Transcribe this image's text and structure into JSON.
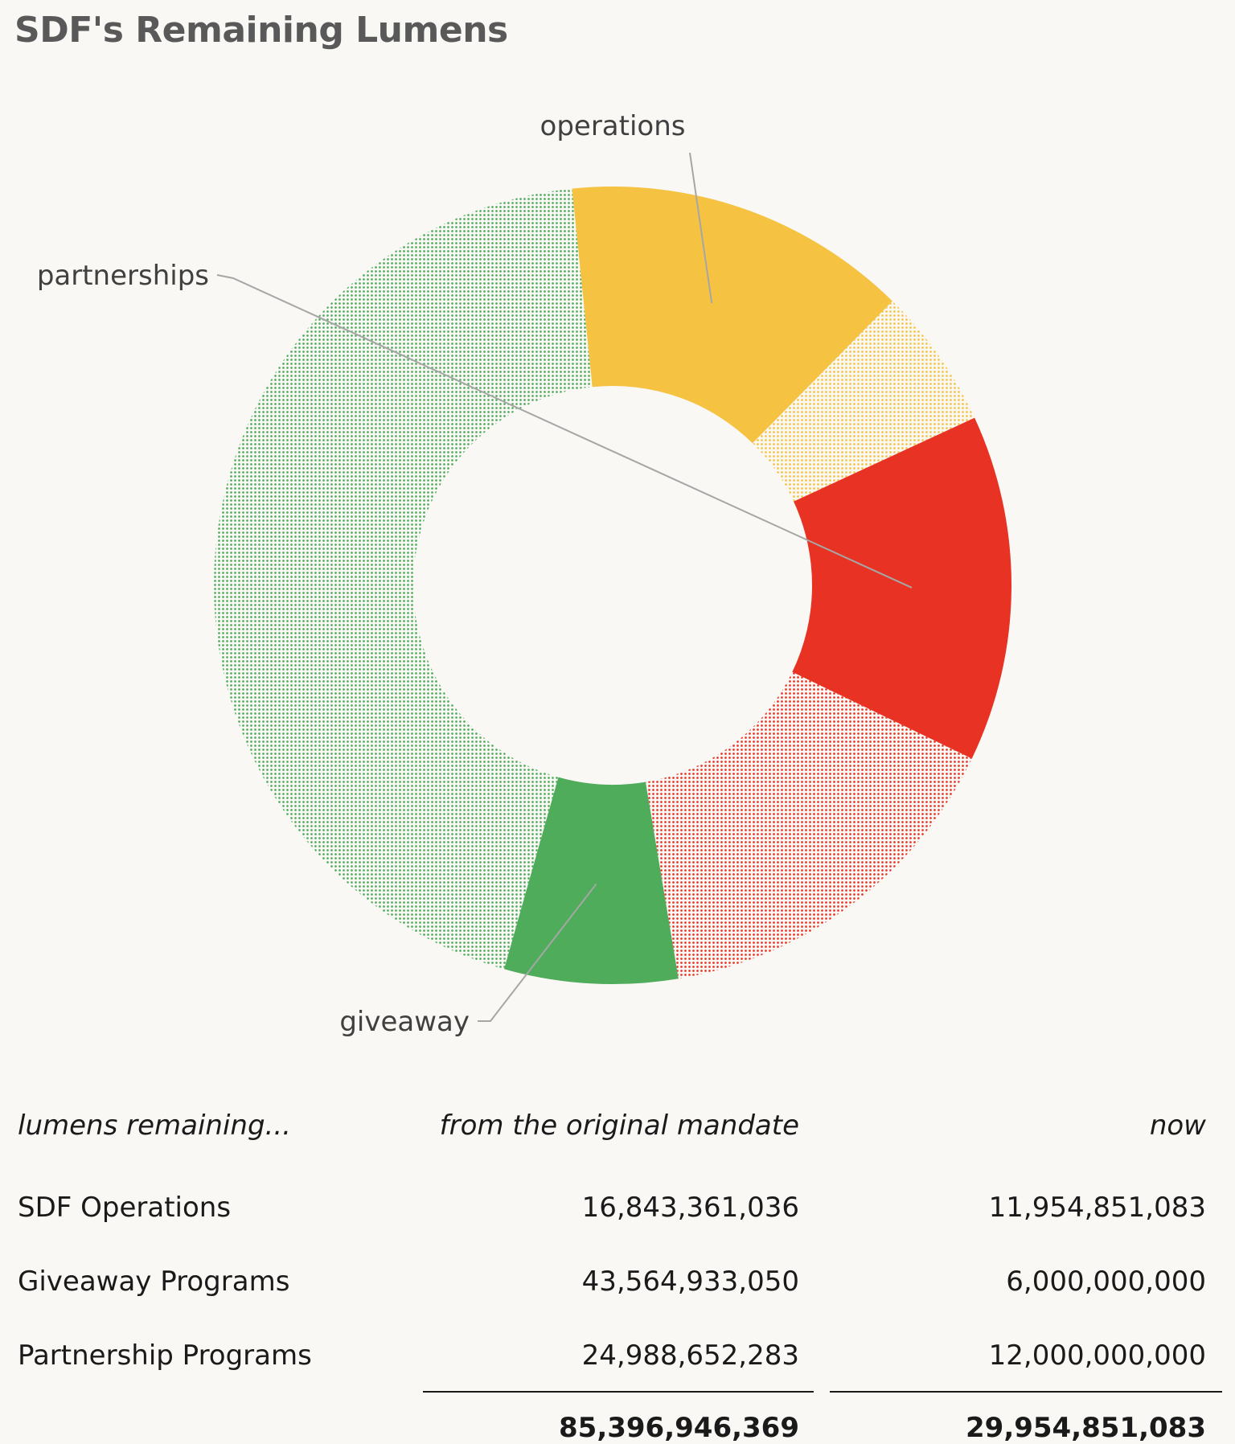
{
  "title": "SDF's Remaining Lumens",
  "chart_data": {
    "type": "pie",
    "subtype": "donut",
    "title": "SDF's Remaining Lumens",
    "slices": [
      {
        "key": "giveaway-now",
        "label": "giveaway",
        "value": 6000000000,
        "color": "#4fac5b",
        "pattern": false
      },
      {
        "key": "giveaway-used",
        "label": "",
        "value": 37564933050,
        "color": "#4fac5b",
        "pattern": true
      },
      {
        "key": "operations-now",
        "label": "operations",
        "value": 11954851083,
        "color": "#f5c242",
        "pattern": false
      },
      {
        "key": "operations-used",
        "label": "",
        "value": 4888509953,
        "color": "#f5c242",
        "pattern": true
      },
      {
        "key": "partnerships-now",
        "label": "partnerships",
        "value": 12000000000,
        "color": "#e83223",
        "pattern": false
      },
      {
        "key": "partnerships-used",
        "label": "",
        "value": 12988652283,
        "color": "#e83223",
        "pattern": true
      }
    ],
    "labels": {
      "operations": "operations",
      "partnerships": "partnerships",
      "giveaway": "giveaway"
    },
    "colors": {
      "giveaway": "#4fac5b",
      "operations": "#f5c242",
      "partnerships": "#e83223",
      "leader": "#a6a6a6"
    }
  },
  "table": {
    "headers": [
      "lumens remaining...",
      "from the original mandate",
      "now"
    ],
    "rows": [
      {
        "name": "SDF Operations",
        "original": "16,843,361,036",
        "now": "11,954,851,083"
      },
      {
        "name": "Giveaway Programs",
        "original": "43,564,933,050",
        "now": "6,000,000,000"
      },
      {
        "name": "Partnership Programs",
        "original": "24,988,652,283",
        "now": "12,000,000,000"
      }
    ],
    "totals": {
      "original": "85,396,946,369",
      "now": "29,954,851,083"
    }
  }
}
